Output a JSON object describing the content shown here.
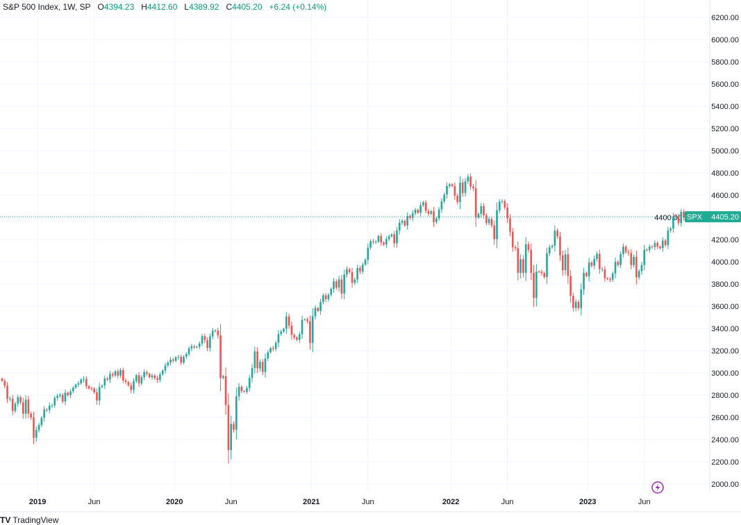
{
  "header": {
    "title": "S&P 500 Index, 1W, SP",
    "open_label": "O",
    "open": "4394.23",
    "high_label": "H",
    "high": "4412.60",
    "low_label": "L",
    "low": "4389.92",
    "close_label": "C",
    "close": "4405.20",
    "change": "+6.24 (+0.14%)"
  },
  "price_tag": {
    "symbol": "SPX",
    "value": "4405.20"
  },
  "branding": {
    "logo": "TV",
    "name": "TradingView"
  },
  "colors": {
    "up": "#26a69a",
    "down": "#ef5350",
    "grid": "#f0f3fa",
    "tag": "#22ab94",
    "text": "#131722",
    "lightning": "#9c27b0"
  },
  "chart_data": {
    "type": "candlestick",
    "title": "S&P 500 Index, 1W, SP",
    "ylim": [
      2000,
      6200
    ],
    "y_ticks": [
      "6200.00",
      "6000.00",
      "5800.00",
      "5600.00",
      "5400.00",
      "5200.00",
      "5000.00",
      "4800.00",
      "4600.00",
      "4400.00",
      "4200.00",
      "4000.00",
      "3800.00",
      "3600.00",
      "3400.00",
      "3200.00",
      "3000.00",
      "2800.00",
      "2600.00",
      "2400.00",
      "2200.00",
      "2000.00"
    ],
    "x_ticks": [
      "2019",
      "Jun",
      "2020",
      "Jun",
      "2021",
      "Jun",
      "2022",
      "Jun",
      "2023",
      "Jun"
    ],
    "x_tick_weeks": [
      13.5,
      35,
      65.5,
      87,
      117.5,
      139,
      170.5,
      192,
      222.5,
      244
    ],
    "first_open": 2950,
    "weekly_close": [
      2928,
      2885,
      2767,
      2767,
      2658,
      2723,
      2781,
      2736,
      2633,
      2760,
      2633,
      2600,
      2416,
      2486,
      2532,
      2596,
      2670,
      2665,
      2707,
      2708,
      2775,
      2792,
      2803,
      2743,
      2822,
      2800,
      2834,
      2867,
      2895,
      2907,
      2940,
      2946,
      2881,
      2860,
      2859,
      2826,
      2752,
      2873,
      2886,
      2950,
      2941,
      2990,
      2977,
      3014,
      2976,
      3025,
      2932,
      2918,
      2888,
      2847,
      2926,
      2979,
      2907,
      2962,
      3007,
      2992,
      2961,
      2977,
      2952,
      2938,
      2986,
      3022,
      3067,
      3093,
      3120,
      3110,
      3141,
      3145,
      3093,
      3146,
      3169,
      3221,
      3240,
      3230,
      3235,
      3265,
      3330,
      3295,
      3225,
      3328,
      3380,
      3380,
      3338,
      2954,
      2972,
      2711,
      2305,
      2541,
      2489,
      2789,
      2875,
      2837,
      2830,
      2864,
      2955,
      3044,
      3193,
      3041,
      3098,
      3009,
      3130,
      3185,
      3224,
      3216,
      3271,
      3351,
      3372,
      3397,
      3508,
      3426,
      3341,
      3319,
      3298,
      3348,
      3477,
      3483,
      3465,
      3270,
      3510,
      3585,
      3557,
      3638,
      3699,
      3663,
      3703,
      3756,
      3824,
      3768,
      3841,
      3714,
      3886,
      3934,
      3907,
      3811,
      3841,
      3943,
      3913,
      3974,
      4019,
      4128,
      4185,
      4180,
      4181,
      4232,
      4173,
      4156,
      4204,
      4229,
      4247,
      4166,
      4281,
      4352,
      4369,
      4327,
      4411,
      4395,
      4437,
      4468,
      4441,
      4509,
      4535,
      4458,
      4432,
      4455,
      4357,
      4391,
      4471,
      4545,
      4605,
      4682,
      4697,
      4682,
      4595,
      4538,
      4712,
      4620,
      4725,
      4766,
      4677,
      4662,
      4398,
      4432,
      4500,
      4419,
      4349,
      4385,
      4328,
      4204,
      4463,
      4543,
      4546,
      4488,
      4392,
      4271,
      4132,
      4123,
      3901,
      4023,
      3901,
      4158,
      4108,
      3900,
      3675,
      3912,
      3911,
      3899,
      3863,
      4076,
      4131,
      4145,
      4280,
      4228,
      4058,
      3924,
      4067,
      3873,
      3693,
      3585,
      3640,
      3583,
      3752,
      3901,
      3871,
      3993,
      3965,
      4026,
      4072,
      3934,
      3934,
      3852,
      3844,
      3839,
      3895,
      3999,
      3972,
      4070,
      4136,
      4090,
      4079,
      3970,
      4045,
      3861,
      3916,
      3971,
      4109,
      4105,
      4137,
      4133,
      4169,
      4136,
      4124,
      4191,
      4151,
      4282,
      4299,
      4410,
      4409,
      4348,
      4450,
      4399,
      4405.2
    ],
    "last_price": 4405.2
  }
}
